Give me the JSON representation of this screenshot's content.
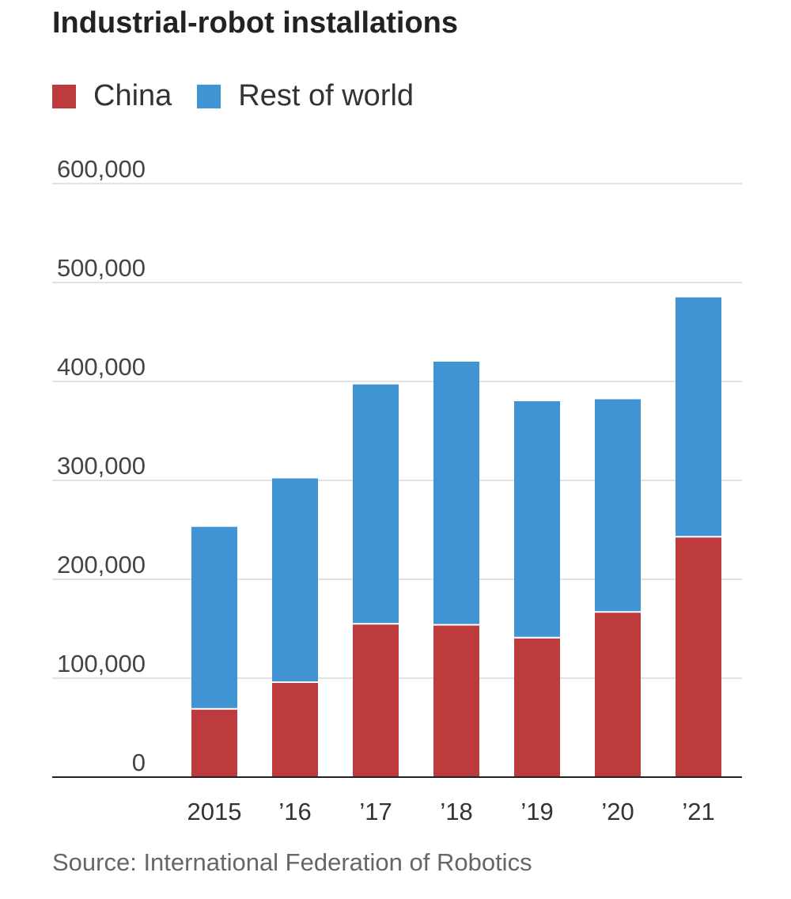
{
  "chart_data": {
    "type": "bar",
    "stacked": true,
    "title": "Industrial-robot installations",
    "categories": [
      "2015",
      "’16",
      "’17",
      "’18",
      "’19",
      "’20",
      "’21"
    ],
    "series": [
      {
        "name": "China",
        "color": "#bd3b3d",
        "values": [
          69000,
          96000,
          155000,
          154000,
          141000,
          167000,
          243000
        ]
      },
      {
        "name": "Rest of world",
        "color": "#4194d4",
        "values": [
          184000,
          206000,
          242000,
          266000,
          239000,
          215000,
          242000
        ]
      }
    ],
    "ylim": [
      0,
      600000
    ],
    "yticks": [
      "0",
      "100,000",
      "200,000",
      "300,000",
      "400,000",
      "500,000",
      "600,000"
    ],
    "grid": true,
    "legend": "top-left",
    "source": "Source: International Federation of Robotics"
  }
}
